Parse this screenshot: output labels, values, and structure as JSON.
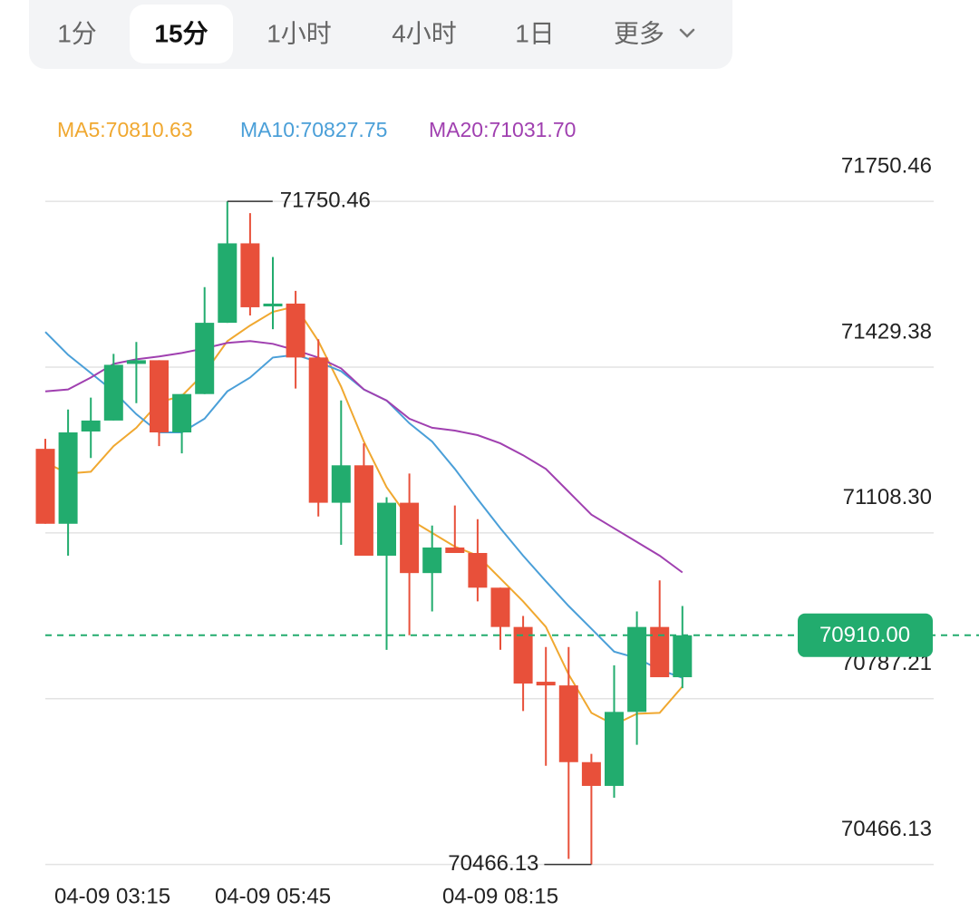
{
  "tabs": {
    "items": [
      "1分",
      "15分",
      "1小时",
      "4小时",
      "1日",
      "更多"
    ],
    "selected": 1
  },
  "chart_data": {
    "type": "candlestick",
    "categories": [
      "04-09 03:15",
      null,
      null,
      null,
      null,
      null,
      null,
      null,
      null,
      null,
      "04-09 05:45",
      null,
      null,
      null,
      null,
      null,
      null,
      null,
      null,
      null,
      "04-09 08:15",
      null,
      null,
      null,
      null,
      null,
      null,
      null,
      null
    ],
    "open": [
      71271.1,
      71126.0,
      71304.7,
      71325.9,
      71435.6,
      71442.7,
      71302.9,
      71377.2,
      71515.2,
      71669.1,
      71547.0,
      71552.4,
      71448.0,
      71166.7,
      71239.2,
      71064.1,
      71166.7,
      71030.5,
      71080.0,
      71069.4,
      71002.2,
      70926.1,
      70820.0,
      70812.9,
      70664.3,
      70618.3,
      70761.6,
      70926.1,
      70828.8
    ],
    "high": [
      71290.5,
      71347.2,
      71370.2,
      71455.0,
      71478.1,
      71442.7,
      71377.2,
      71584.2,
      71750.46,
      71727.5,
      71642.6,
      71577.1,
      71483.4,
      71364.8,
      71281.7,
      71177.3,
      71223.3,
      71122.5,
      71161.4,
      71134.9,
      71002.2,
      70947.4,
      70887.2,
      70887.2,
      70680.3,
      70851.8,
      70956.2,
      71016.4,
      70966.8
    ],
    "low": [
      71126.0,
      71064.1,
      71253.4,
      71325.9,
      71359.5,
      71276.4,
      71262.3,
      71377.2,
      71515.2,
      71529.4,
      71502.8,
      71387.8,
      71140.2,
      71085.3,
      71064.1,
      70881.9,
      70910.0,
      70956.2,
      71069.4,
      70975.7,
      70881.9,
      70763.4,
      70657.3,
      70476.8,
      70466.13,
      70595.3,
      70697.9,
      70828.8,
      70807.6
    ],
    "close": [
      71126.0,
      71302.9,
      71325.9,
      71433.8,
      71442.7,
      71302.9,
      71377.2,
      71515.2,
      71669.1,
      71545.3,
      71552.4,
      71448.0,
      71166.7,
      71239.2,
      71064.1,
      71166.7,
      71030.5,
      71080.0,
      71069.4,
      71002.2,
      70926.1,
      70816.5,
      70812.9,
      70664.3,
      70618.3,
      70761.6,
      70926.1,
      70828.8,
      70910.0
    ],
    "up_color": "#22ac6e",
    "down_color": "#e8503a",
    "series": [
      {
        "name": "MA5:70810.63",
        "color": "#f0a830",
        "values": [
          71244.6,
          71223.3,
          71226.8,
          71276.4,
          71311.8,
          71361.3,
          71373.7,
          71417.9,
          71479.8,
          71509.9,
          71536.4,
          71547.0,
          71479.8,
          71391.4,
          71285.2,
          71196.8,
          71134.9,
          71108.3,
          71081.8,
          71064.1,
          71019.9,
          70975.7,
          70926.1,
          70834.2,
          70759.8,
          70736.8,
          70758.0,
          70759.8,
          70810.63
        ]
      },
      {
        "name": "MA10:70827.75",
        "color": "#4a9fd8",
        "values": [
          71497.5,
          71453.3,
          71417.9,
          71382.5,
          71338.3,
          71302.9,
          71302.9,
          71329.4,
          71382.5,
          71409.1,
          71448.0,
          71453.3,
          71439.1,
          71421.4,
          71386.1,
          71364.8,
          71320.6,
          71285.2,
          71232.2,
          71173.8,
          71117.2,
          71064.1,
          71014.6,
          70966.8,
          70922.6,
          70878.4,
          70866.0,
          70843.0,
          70827.75
        ]
      },
      {
        "name": "MA20:71031.70",
        "color": "#a040b0",
        "values": [
          71382.5,
          71386.1,
          71409.1,
          71435.6,
          71444.5,
          71449.8,
          71456.8,
          71465.7,
          71476.3,
          71479.8,
          71474.5,
          71462.2,
          71448.0,
          71426.8,
          71386.1,
          71364.8,
          71329.4,
          71311.8,
          71306.5,
          71297.6,
          71281.7,
          71258.7,
          71232.2,
          71188.0,
          71143.7,
          71117.2,
          71090.7,
          71064.1,
          71031.7
        ]
      }
    ],
    "ylim": [
      70453.2,
      71775.2
    ],
    "yticks": [
      71750.46,
      71429.38,
      {
        "value": 71108.3,
        "label": "71108.30"
      },
      70787.21,
      70466.13
    ],
    "grid": true,
    "high_marker": 71750.46,
    "low_marker": 70466.13,
    "current_price": {
      "value": 70910,
      "label": "70910.00"
    },
    "current_color": "#22ac6e"
  }
}
